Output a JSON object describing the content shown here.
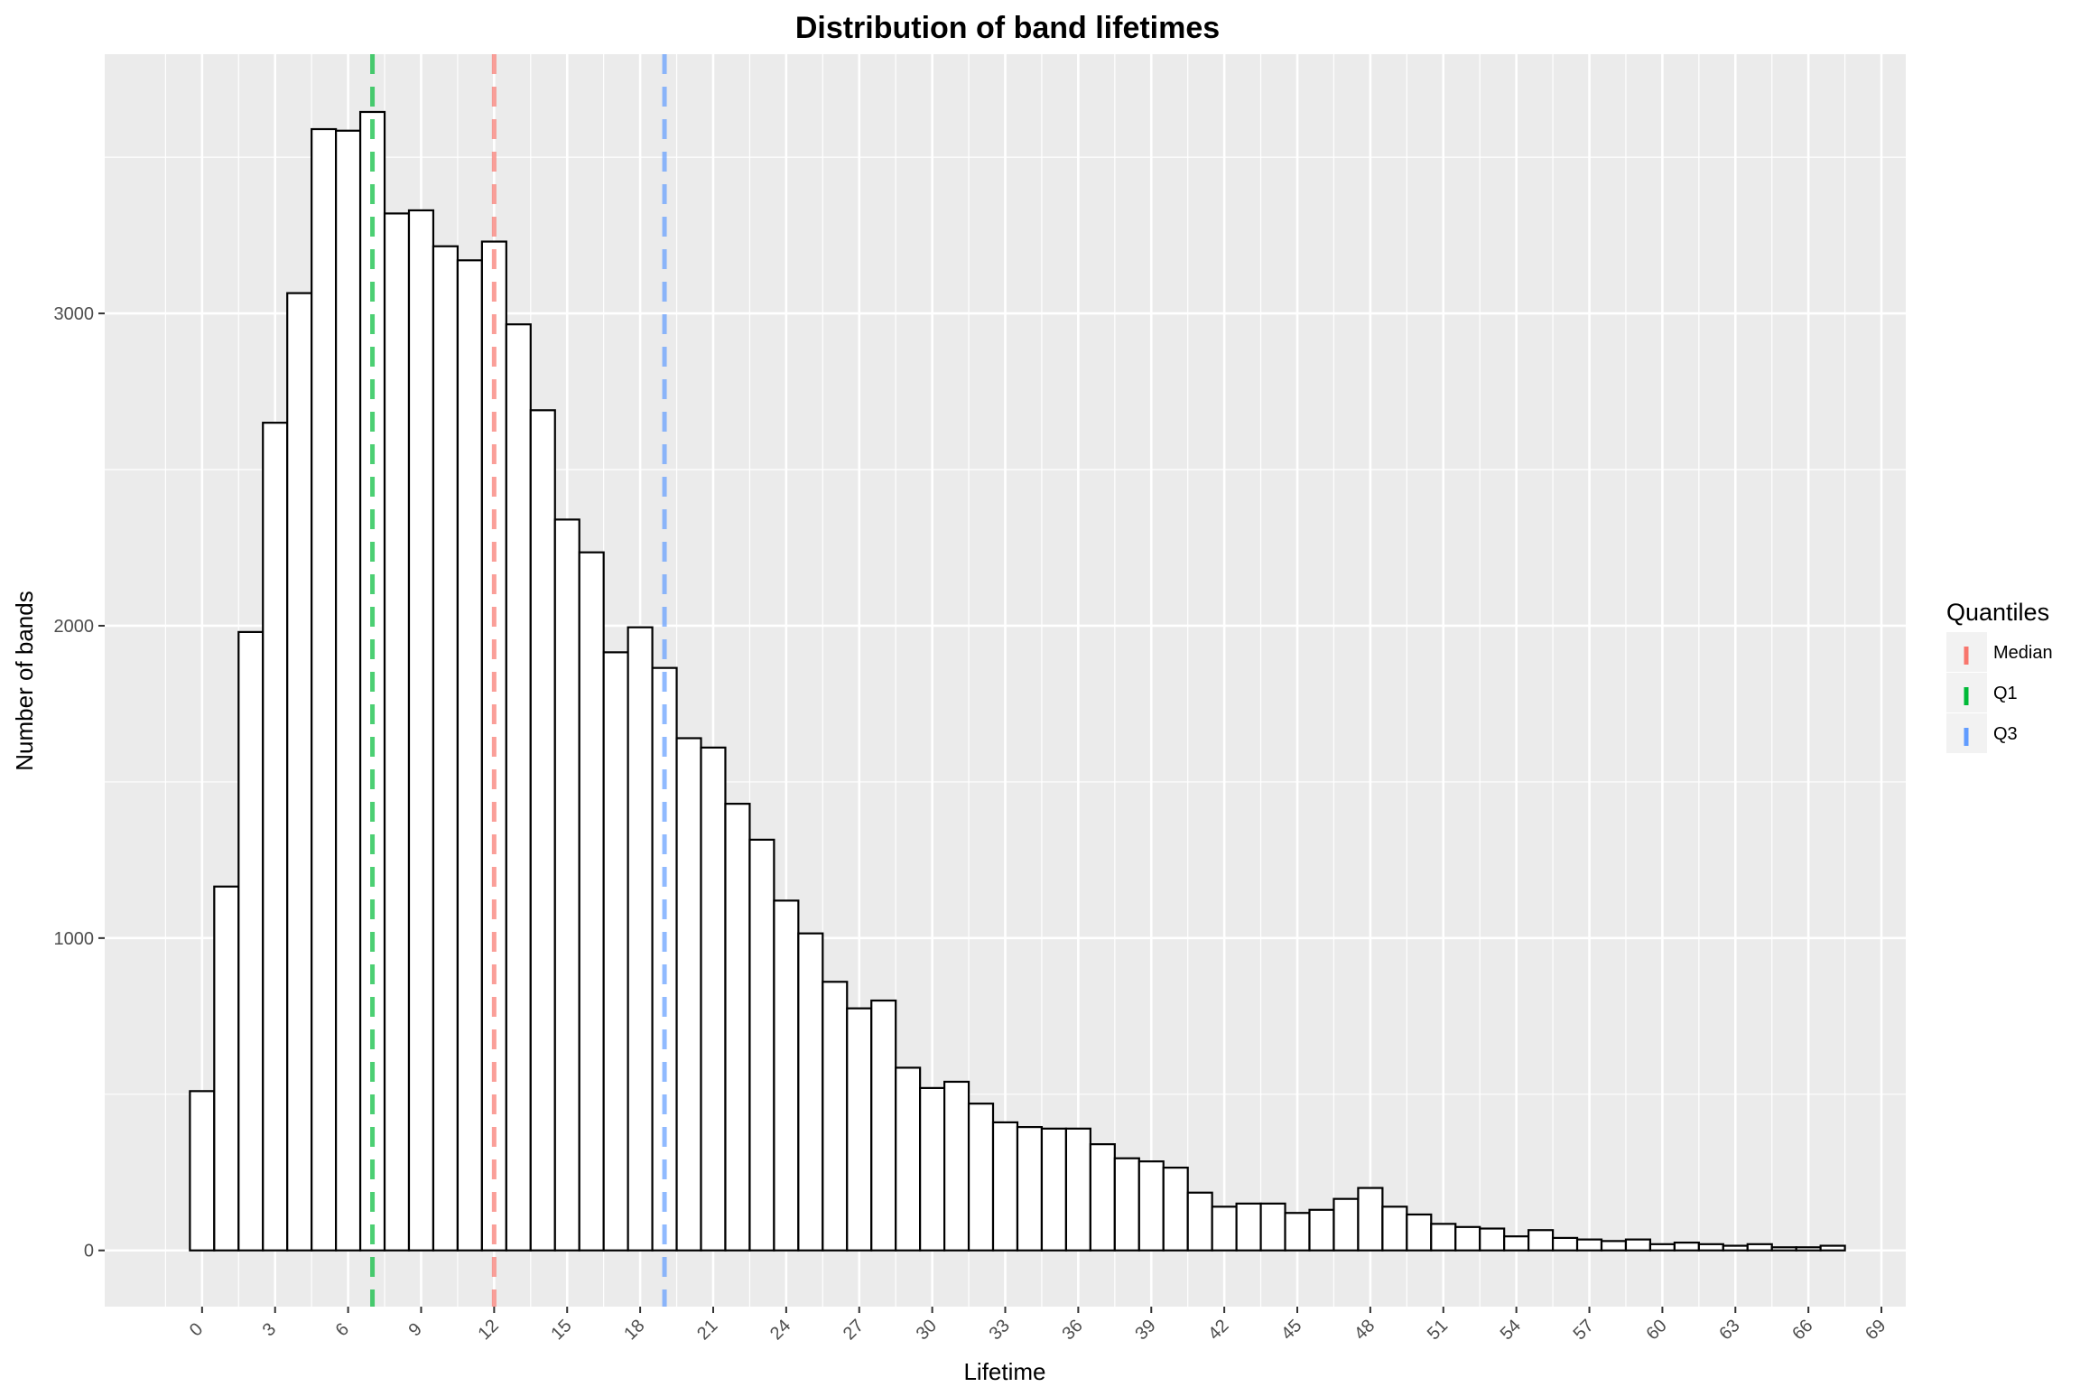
{
  "chart_data": {
    "type": "bar",
    "title": "Distribution of band lifetimes",
    "xlabel": "Lifetime",
    "ylabel": "Number of bands",
    "xlim": [
      -4,
      70
    ],
    "ylim": [
      -180,
      3830
    ],
    "x_ticks": [
      0,
      3,
      6,
      9,
      12,
      15,
      18,
      21,
      24,
      27,
      30,
      33,
      36,
      39,
      42,
      45,
      48,
      51,
      54,
      57,
      60,
      63,
      66,
      69
    ],
    "y_ticks": [
      0,
      1000,
      2000,
      3000
    ],
    "bin_width": 1,
    "x": [
      0,
      1,
      2,
      3,
      4,
      5,
      6,
      7,
      8,
      9,
      10,
      11,
      12,
      13,
      14,
      15,
      16,
      17,
      18,
      19,
      20,
      21,
      22,
      23,
      24,
      25,
      26,
      27,
      28,
      29,
      30,
      31,
      32,
      33,
      34,
      35,
      36,
      37,
      38,
      39,
      40,
      41,
      42,
      43,
      44,
      45,
      46,
      47,
      48,
      49,
      50,
      51,
      52,
      53,
      54,
      55,
      56,
      57,
      58,
      59,
      60,
      61,
      62,
      63,
      64,
      65,
      66,
      67
    ],
    "values": [
      510,
      1165,
      1980,
      2650,
      3065,
      3590,
      3585,
      3645,
      3320,
      3330,
      3215,
      3170,
      3230,
      2965,
      2690,
      2340,
      2235,
      1915,
      1995,
      1865,
      1640,
      1610,
      1430,
      1315,
      1120,
      1015,
      860,
      775,
      800,
      585,
      520,
      540,
      470,
      410,
      395,
      390,
      390,
      340,
      295,
      285,
      265,
      185,
      140,
      150,
      150,
      120,
      130,
      165,
      200,
      140,
      115,
      85,
      75,
      70,
      45,
      65,
      40,
      35,
      30,
      35,
      20,
      25,
      20,
      15,
      20,
      10,
      10,
      15
    ],
    "quantiles": [
      {
        "name": "Median",
        "x": 12,
        "color": "#f8766d"
      },
      {
        "name": "Q1",
        "x": 7,
        "color": "#00ba38"
      },
      {
        "name": "Q3",
        "x": 19,
        "color": "#619cff"
      }
    ],
    "legend": {
      "title": "Quantiles",
      "position": "right"
    },
    "grid": true,
    "colors": {
      "panel": "#ebebeb",
      "grid": "#ffffff",
      "bar_fill": "#ffffff",
      "bar_stroke": "#000000"
    }
  }
}
